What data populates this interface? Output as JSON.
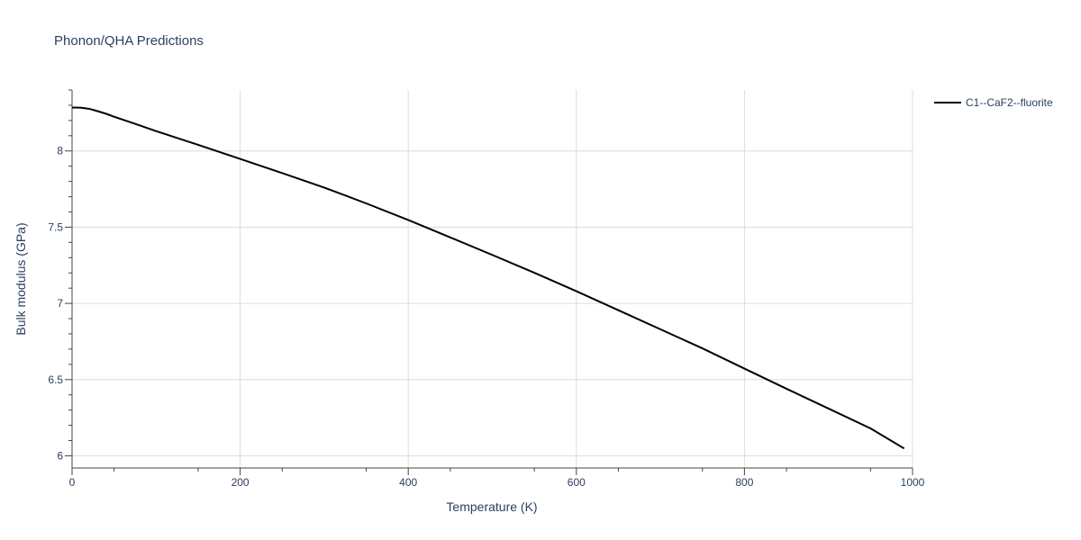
{
  "chart_data": {
    "type": "line",
    "title": "Phonon/QHA Predictions",
    "xlabel": "Temperature (K)",
    "ylabel": "Bulk modulus (GPa)",
    "xlim": [
      0,
      1000
    ],
    "ylim": [
      5.92,
      8.4
    ],
    "x_ticks": [
      0,
      200,
      400,
      600,
      800,
      1000
    ],
    "y_ticks": [
      6,
      6.5,
      7,
      7.5,
      8
    ],
    "x_tick_labels": [
      "0",
      "200",
      "400",
      "600",
      "800",
      "1000"
    ],
    "y_tick_labels": [
      "6",
      "6.5",
      "7",
      "7.5",
      "8"
    ],
    "grid": true,
    "legend_position": "top-right",
    "series": [
      {
        "name": "C1--CaF2--fluorite",
        "color": "#000000",
        "x": [
          0,
          10,
          20,
          30,
          40,
          50,
          75,
          100,
          150,
          200,
          250,
          300,
          350,
          400,
          450,
          500,
          550,
          600,
          650,
          700,
          750,
          800,
          850,
          900,
          950,
          990
        ],
        "y": [
          8.285,
          8.284,
          8.277,
          8.262,
          8.245,
          8.225,
          8.178,
          8.13,
          8.04,
          7.948,
          7.855,
          7.76,
          7.656,
          7.547,
          7.433,
          7.318,
          7.201,
          7.08,
          6.955,
          6.83,
          6.705,
          6.572,
          6.44,
          6.31,
          6.18,
          6.048
        ]
      }
    ]
  }
}
